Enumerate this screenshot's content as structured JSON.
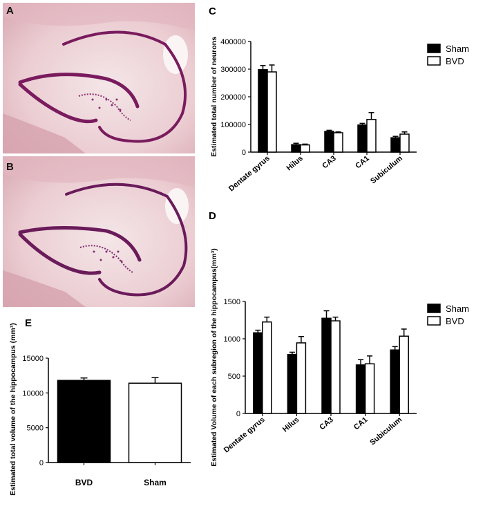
{
  "panel_labels": {
    "a": "A",
    "b": "B",
    "c": "C",
    "d": "D",
    "e": "E"
  },
  "colors": {
    "sham": "#000000",
    "bvd": "#ffffff",
    "stain_bg": "#e9c3c8",
    "stain_cells": "#8a1f6a"
  },
  "chart_data": [
    {
      "panel": "C",
      "type": "bar",
      "categories": [
        "Dentate gyrus",
        "Hilus",
        "CA3",
        "CA1",
        "Subiculum"
      ],
      "series": [
        {
          "name": "Sham",
          "values": [
            298000,
            27000,
            75000,
            98000,
            52000
          ],
          "errors": [
            15000,
            5000,
            4000,
            6000,
            5000
          ]
        },
        {
          "name": "BVD",
          "values": [
            290000,
            26000,
            70000,
            118000,
            65000
          ],
          "errors": [
            25000,
            3000,
            3000,
            25000,
            8000
          ]
        }
      ],
      "ylabel": "Estimated total number of neurons",
      "yticks": [
        "0",
        "100000",
        "200000",
        "300000",
        "400000"
      ],
      "ylim": [
        0,
        400000
      ],
      "legend": "right"
    },
    {
      "panel": "D",
      "type": "bar",
      "categories": [
        "Dentate gyrus",
        "Hilus",
        "CA3",
        "CA1",
        "Subiculum"
      ],
      "series": [
        {
          "name": "Sham",
          "values": [
            1080,
            790,
            1275,
            650,
            850
          ],
          "errors": [
            35,
            30,
            100,
            70,
            45
          ]
        },
        {
          "name": "BVD",
          "values": [
            1225,
            945,
            1240,
            665,
            1035
          ],
          "errors": [
            65,
            85,
            50,
            105,
            95
          ]
        }
      ],
      "ylabel": "Estimated Volume of each subregion of the hippocampus(mm³)",
      "yticks": [
        "0",
        "500",
        "1000",
        "1500"
      ],
      "ylim": [
        0,
        1500
      ],
      "legend": "right"
    },
    {
      "panel": "E",
      "type": "bar",
      "categories": [
        "BVD",
        "Sham"
      ],
      "values": [
        11800,
        11400
      ],
      "errors": [
        350,
        800
      ],
      "fills": [
        "#000000",
        "#ffffff"
      ],
      "ylabel": "Estimated total volume of the hippocampus (mm³)",
      "yticks": [
        "0",
        "5000",
        "10000",
        "15000"
      ],
      "ylim": [
        0,
        15000
      ]
    }
  ]
}
